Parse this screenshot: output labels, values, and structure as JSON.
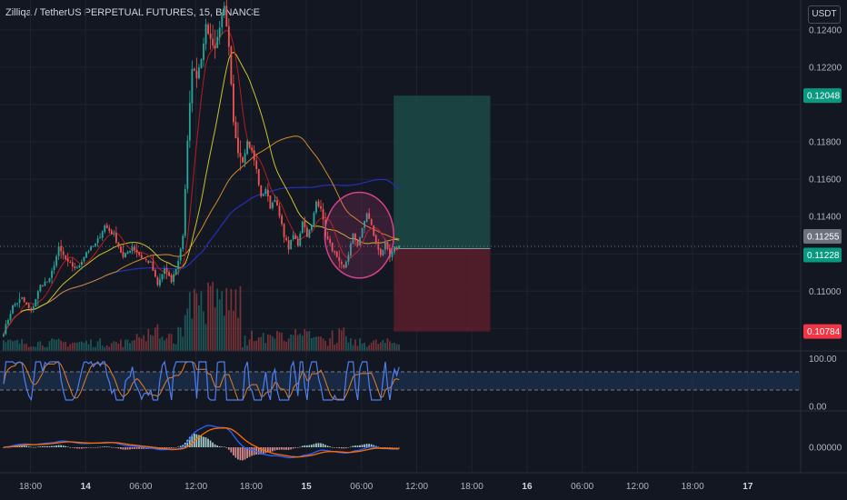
{
  "header": {
    "title": "Zilliqa / TetherUS PERPETUAL FUTURES, 15, BINANCE",
    "currency": "USDT"
  },
  "colors": {
    "background": "#131722",
    "grid": "#1f2330",
    "up": "#26a69a",
    "down": "#ef5350",
    "ma_red": "#b71c1c",
    "ma_yellow": "#c9c12b",
    "ma_orange": "#d08a2a",
    "ma_blue": "#2530b8",
    "rsi": "#4f7ef0",
    "rsi_ma": "#e67e22",
    "macd": "#2962ff",
    "signal": "#ff6d00",
    "profit_zone": "#1b4a45",
    "loss_zone": "#5a1f2a",
    "ellipse": "#d6428a"
  },
  "chart_data": [
    {
      "type": "candlestick",
      "name": "price",
      "ylim": [
        0.1068,
        0.1256
      ],
      "y_ticks": [
        "0.12400",
        "0.12200",
        "0.11800",
        "0.11600",
        "0.11400",
        "0.11000"
      ],
      "price_labels": [
        {
          "value": "0.12048",
          "kind": "target",
          "color": "#089981"
        },
        {
          "value": "0.11255",
          "kind": "last",
          "color": "#6d717d"
        },
        {
          "value": "0.11228",
          "kind": "entry",
          "color": "#089981"
        },
        {
          "value": "0.10784",
          "kind": "stop",
          "color": "#f23645"
        }
      ],
      "position": {
        "entry": 0.11228,
        "target": 0.12048,
        "stop": 0.10784,
        "start_time": "09:30",
        "end_time": "20:00"
      },
      "ellipse_annotation": {
        "from_time": "02:00",
        "to_time": "09:30",
        "price_low": 0.1107,
        "price_high": 0.1153
      },
      "waypoints": [
        [
          0,
          0.1078
        ],
        [
          4,
          0.1092
        ],
        [
          8,
          0.1096
        ],
        [
          12,
          0.1089
        ],
        [
          16,
          0.1103
        ],
        [
          20,
          0.1106
        ],
        [
          24,
          0.1123
        ],
        [
          28,
          0.1115
        ],
        [
          32,
          0.1112
        ],
        [
          36,
          0.1121
        ],
        [
          40,
          0.1125
        ],
        [
          44,
          0.1135
        ],
        [
          48,
          0.113
        ],
        [
          52,
          0.1118
        ],
        [
          56,
          0.1124
        ],
        [
          60,
          0.1118
        ],
        [
          64,
          0.1115
        ],
        [
          67,
          0.1103
        ],
        [
          70,
          0.1112
        ],
        [
          73,
          0.1105
        ],
        [
          76,
          0.1116
        ],
        [
          78,
          0.113
        ],
        [
          80,
          0.118
        ],
        [
          82,
          0.122
        ],
        [
          84,
          0.1215
        ],
        [
          86,
          0.1225
        ],
        [
          88,
          0.1242
        ],
        [
          90,
          0.1235
        ],
        [
          92,
          0.123
        ],
        [
          94,
          0.1242
        ],
        [
          96,
          0.1252
        ],
        [
          98,
          0.123
        ],
        [
          100,
          0.119
        ],
        [
          102,
          0.1175
        ],
        [
          104,
          0.117
        ],
        [
          106,
          0.118
        ],
        [
          108,
          0.1175
        ],
        [
          110,
          0.1165
        ],
        [
          112,
          0.115
        ],
        [
          114,
          0.1155
        ],
        [
          116,
          0.1145
        ],
        [
          118,
          0.115
        ],
        [
          120,
          0.114
        ],
        [
          122,
          0.113
        ],
        [
          124,
          0.1123
        ],
        [
          126,
          0.113
        ],
        [
          128,
          0.1125
        ],
        [
          130,
          0.1138
        ],
        [
          132,
          0.113
        ],
        [
          134,
          0.1135
        ],
        [
          136,
          0.1148
        ],
        [
          138,
          0.1145
        ],
        [
          140,
          0.113
        ],
        [
          142,
          0.1125
        ],
        [
          144,
          0.112
        ],
        [
          146,
          0.1115
        ],
        [
          148,
          0.1112
        ],
        [
          150,
          0.112
        ],
        [
          152,
          0.113
        ],
        [
          154,
          0.1125
        ],
        [
          156,
          0.1133
        ],
        [
          158,
          0.1142
        ],
        [
          160,
          0.1135
        ],
        [
          162,
          0.1125
        ],
        [
          164,
          0.112
        ],
        [
          166,
          0.1125
        ],
        [
          168,
          0.1118
        ],
        [
          170,
          0.1123
        ],
        [
          172,
          0.1124
        ]
      ]
    },
    {
      "type": "line",
      "name": "rsi",
      "ylim": [
        0,
        100
      ],
      "y_ticks": [
        "100.00",
        "0.00"
      ],
      "band": [
        30,
        70
      ]
    },
    {
      "type": "bar",
      "name": "macd",
      "y_ticks": [
        "0.00000"
      ]
    }
  ],
  "x_axis": {
    "ticks": [
      {
        "label": "18:00",
        "bold": false
      },
      {
        "label": "14",
        "bold": true
      },
      {
        "label": "06:00",
        "bold": false
      },
      {
        "label": "12:00",
        "bold": false
      },
      {
        "label": "18:00",
        "bold": false
      },
      {
        "label": "15",
        "bold": true
      },
      {
        "label": "06:00",
        "bold": false
      },
      {
        "label": "12:00",
        "bold": false
      },
      {
        "label": "18:00",
        "bold": false
      },
      {
        "label": "16",
        "bold": true
      },
      {
        "label": "06:00",
        "bold": false
      },
      {
        "label": "12:00",
        "bold": false
      },
      {
        "label": "18:00",
        "bold": false
      },
      {
        "label": "17",
        "bold": true
      }
    ]
  }
}
